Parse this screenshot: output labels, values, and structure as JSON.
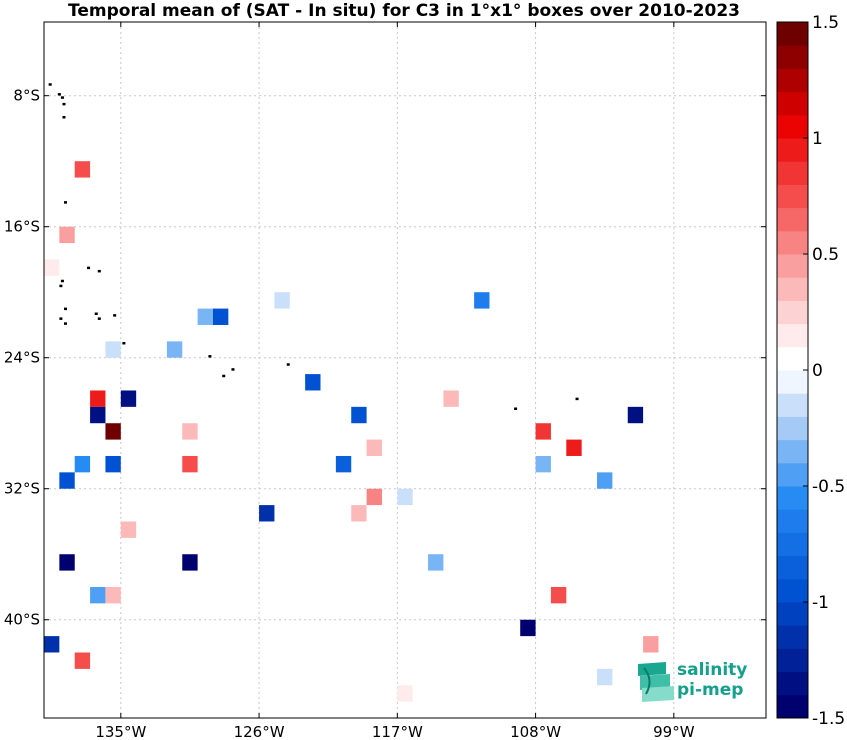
{
  "chart_data": {
    "type": "heatmap",
    "title": "Temporal mean of (SAT - In situ) for C3 in 1°x1° boxes over 2010-2023",
    "xlim": [
      -140,
      -93
    ],
    "ylim": [
      -46,
      -3.5
    ],
    "x_ticks": [
      -135,
      -126,
      -117,
      -108,
      -99
    ],
    "x_tick_labels": [
      "135°W",
      "126°W",
      "117°W",
      "108°W",
      "99°W"
    ],
    "y_ticks": [
      -8,
      -16,
      -24,
      -32,
      -40
    ],
    "y_tick_labels": [
      "8°S",
      "16°S",
      "24°S",
      "32°S",
      "40°S"
    ],
    "grid": true,
    "colorbar": {
      "vmin": -1.5,
      "vmax": 1.5,
      "levels": 30,
      "ticks": [
        -1.5,
        -1,
        -0.5,
        0,
        0.5,
        1,
        1.5
      ],
      "tick_labels": [
        "-1.5",
        "-1",
        "-0.5",
        "0",
        "0.5",
        "1",
        "1.5"
      ]
    },
    "cells": [
      {
        "lon": -137.5,
        "lat": -12.5,
        "value": 0.7
      },
      {
        "lon": -138.5,
        "lat": -16.5,
        "value": 0.45
      },
      {
        "lon": -139.5,
        "lat": -18.5,
        "value": 0.15
      },
      {
        "lon": -135.5,
        "lat": -23.5,
        "value": -0.2
      },
      {
        "lon": -131.5,
        "lat": -23.5,
        "value": -0.35
      },
      {
        "lon": -129.5,
        "lat": -21.5,
        "value": -0.3
      },
      {
        "lon": -128.5,
        "lat": -21.5,
        "value": -0.9
      },
      {
        "lon": -124.5,
        "lat": -20.5,
        "value": -0.15
      },
      {
        "lon": -111.5,
        "lat": -20.5,
        "value": -0.7
      },
      {
        "lon": -136.5,
        "lat": -26.5,
        "value": 0.95
      },
      {
        "lon": -134.5,
        "lat": -26.5,
        "value": -1.3
      },
      {
        "lon": -136.5,
        "lat": -27.5,
        "value": -1.4
      },
      {
        "lon": -135.5,
        "lat": -28.5,
        "value": 1.5
      },
      {
        "lon": -122.5,
        "lat": -25.5,
        "value": -0.9
      },
      {
        "lon": -119.5,
        "lat": -27.5,
        "value": -1.0
      },
      {
        "lon": -130.5,
        "lat": -28.5,
        "value": 0.3
      },
      {
        "lon": -118.5,
        "lat": -29.5,
        "value": 0.3
      },
      {
        "lon": -137.5,
        "lat": -30.5,
        "value": -0.6
      },
      {
        "lon": -135.5,
        "lat": -30.5,
        "value": -1.0
      },
      {
        "lon": -130.5,
        "lat": -30.5,
        "value": 0.7
      },
      {
        "lon": -120.5,
        "lat": -30.5,
        "value": -0.8
      },
      {
        "lon": -138.5,
        "lat": -31.5,
        "value": -0.9
      },
      {
        "lon": -118.5,
        "lat": -32.5,
        "value": 0.55
      },
      {
        "lon": -116.5,
        "lat": -32.5,
        "value": -0.15
      },
      {
        "lon": -113.5,
        "lat": -26.5,
        "value": 0.3
      },
      {
        "lon": -107.5,
        "lat": -28.5,
        "value": 0.8
      },
      {
        "lon": -105.5,
        "lat": -29.5,
        "value": 0.95
      },
      {
        "lon": -107.5,
        "lat": -30.5,
        "value": -0.4
      },
      {
        "lon": -101.5,
        "lat": -27.5,
        "value": -1.4
      },
      {
        "lon": -103.5,
        "lat": -31.5,
        "value": -0.45
      },
      {
        "lon": -125.5,
        "lat": -33.5,
        "value": -1.1
      },
      {
        "lon": -119.5,
        "lat": -33.5,
        "value": 0.3
      },
      {
        "lon": -134.5,
        "lat": -34.5,
        "value": 0.35
      },
      {
        "lon": -138.5,
        "lat": -36.5,
        "value": -1.5
      },
      {
        "lon": -130.5,
        "lat": -36.5,
        "value": -1.5
      },
      {
        "lon": -114.5,
        "lat": -36.5,
        "value": -0.3
      },
      {
        "lon": -136.5,
        "lat": -38.5,
        "value": -0.5
      },
      {
        "lon": -135.5,
        "lat": -38.5,
        "value": 0.3
      },
      {
        "lon": -106.5,
        "lat": -38.5,
        "value": 0.7
      },
      {
        "lon": -108.5,
        "lat": -40.5,
        "value": -1.5
      },
      {
        "lon": -139.5,
        "lat": -41.5,
        "value": -1.2
      },
      {
        "lon": -137.5,
        "lat": -42.5,
        "value": 0.75
      },
      {
        "lon": -100.5,
        "lat": -41.5,
        "value": 0.4
      },
      {
        "lon": -103.5,
        "lat": -43.5,
        "value": -0.15
      },
      {
        "lon": -116.5,
        "lat": -44.5,
        "value": 0.12
      }
    ],
    "islands": [
      {
        "lon": -139.6,
        "lat": -7.3
      },
      {
        "lon": -139.0,
        "lat": -7.9
      },
      {
        "lon": -138.8,
        "lat": -8.1
      },
      {
        "lon": -138.7,
        "lat": -8.5
      },
      {
        "lon": -138.7,
        "lat": -9.3
      },
      {
        "lon": -138.6,
        "lat": -14.5
      },
      {
        "lon": -138.8,
        "lat": -19.3
      },
      {
        "lon": -138.9,
        "lat": -19.6
      },
      {
        "lon": -137.1,
        "lat": -18.5
      },
      {
        "lon": -136.4,
        "lat": -18.7
      },
      {
        "lon": -138.6,
        "lat": -21.0
      },
      {
        "lon": -138.9,
        "lat": -21.6
      },
      {
        "lon": -138.6,
        "lat": -21.9
      },
      {
        "lon": -136.6,
        "lat": -21.3
      },
      {
        "lon": -136.4,
        "lat": -21.6
      },
      {
        "lon": -135.4,
        "lat": -21.4
      },
      {
        "lon": -134.8,
        "lat": -23.1
      },
      {
        "lon": -135.9,
        "lat": -23.3
      },
      {
        "lon": -129.2,
        "lat": -23.9
      },
      {
        "lon": -128.3,
        "lat": -25.1
      },
      {
        "lon": -127.7,
        "lat": -24.7
      },
      {
        "lon": -124.1,
        "lat": -24.4
      },
      {
        "lon": -109.3,
        "lat": -27.1
      },
      {
        "lon": -105.3,
        "lat": -26.5
      }
    ]
  },
  "logo": {
    "line1": "salinity",
    "line2": "pi-mep"
  }
}
